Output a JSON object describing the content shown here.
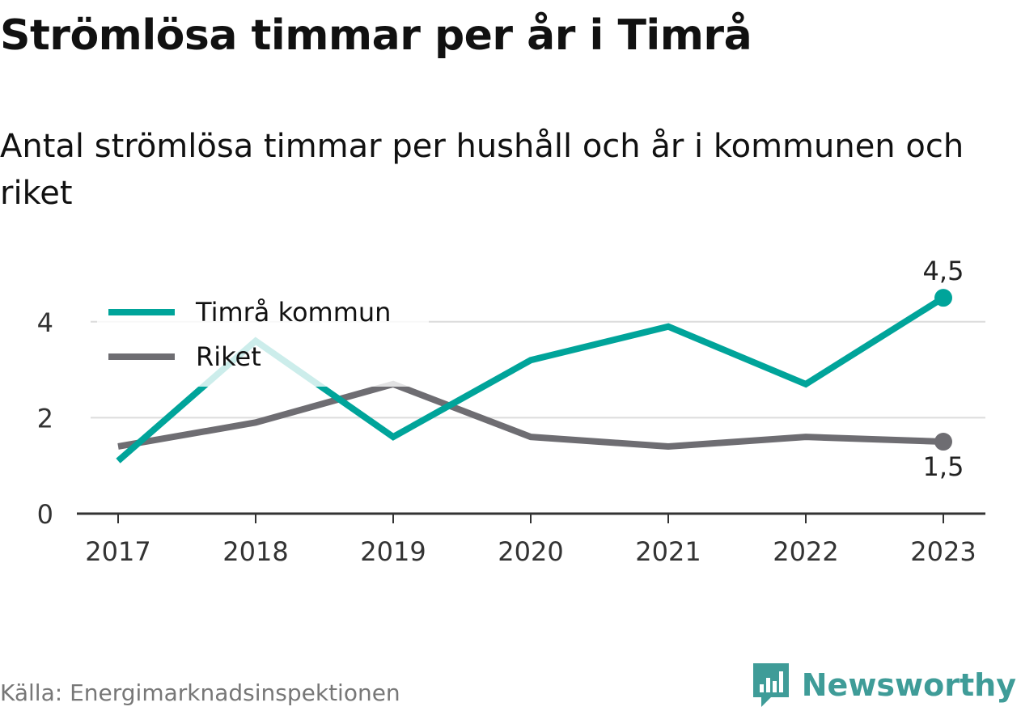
{
  "header": {
    "title": "Strömlösa timmar per år i Timrå",
    "subtitle": "Antal strömlösa timmar per hushåll och år i kommunen och riket"
  },
  "footer": {
    "source": "Källa: Energimarknadsinspektionen",
    "brand": "Newsworthy",
    "brand_icon": "newsworthy-logo-icon",
    "brand_color": "#3f9c98"
  },
  "chart_data": {
    "type": "line",
    "categories": [
      "2017",
      "2018",
      "2019",
      "2020",
      "2021",
      "2022",
      "2023"
    ],
    "y_ticks": [
      "0",
      "2",
      "4"
    ],
    "ylim": [
      0,
      5
    ],
    "grid": true,
    "legend_position": "top-left",
    "series": [
      {
        "name": "Timrå kommun",
        "color": "#00a49a",
        "values": [
          1.1,
          3.6,
          1.6,
          3.2,
          3.9,
          2.7,
          4.5
        ],
        "end_label": "4,5"
      },
      {
        "name": "Riket",
        "color": "#6e6d72",
        "values": [
          1.4,
          1.9,
          2.7,
          1.6,
          1.4,
          1.6,
          1.5
        ],
        "end_label": "1,5"
      }
    ]
  }
}
